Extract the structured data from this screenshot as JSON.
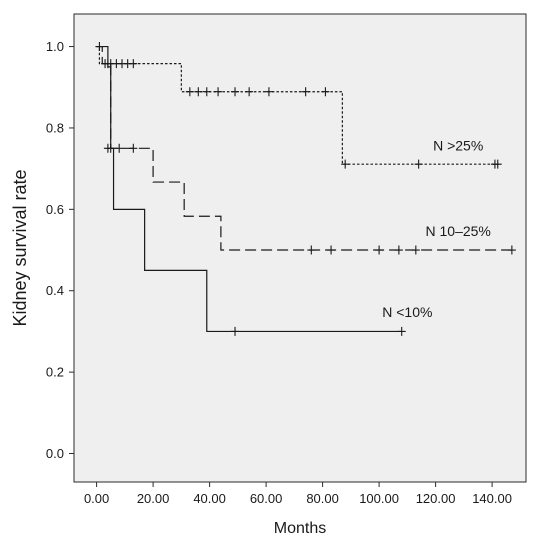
{
  "chart_data": {
    "type": "line",
    "xlabel": "Months",
    "ylabel": "Kidney survival rate",
    "xlim": [
      -8,
      152
    ],
    "ylim": [
      -0.07,
      1.08
    ],
    "x_ticks": [
      0,
      20,
      40,
      60,
      80,
      100,
      120,
      140
    ],
    "x_tick_labels": [
      "0.00",
      "20.00",
      "40.00",
      "60.00",
      "80.00",
      "100.00",
      "120.00",
      "140.00"
    ],
    "y_ticks": [
      0.0,
      0.2,
      0.4,
      0.6,
      0.8,
      1.0
    ],
    "y_tick_labels": [
      "0.0",
      "0.2",
      "0.4",
      "0.6",
      "0.8",
      "1.0"
    ],
    "grid": false,
    "background": "#efefef",
    "series": [
      {
        "name": "N >25%",
        "line_style": "dotted",
        "steps": [
          [
            0,
            1.0
          ],
          [
            1,
            0.958
          ],
          [
            30,
            0.889
          ],
          [
            87,
            0.711
          ],
          [
            143,
            0.711
          ]
        ],
        "censored": [
          [
            4,
            0.958
          ],
          [
            5,
            0.958
          ],
          [
            7,
            0.958
          ],
          [
            9,
            0.958
          ],
          [
            11,
            0.958
          ],
          [
            13,
            0.958
          ],
          [
            33,
            0.889
          ],
          [
            36,
            0.889
          ],
          [
            39,
            0.889
          ],
          [
            43,
            0.889
          ],
          [
            49,
            0.889
          ],
          [
            54,
            0.889
          ],
          [
            61,
            0.889
          ],
          [
            74,
            0.889
          ],
          [
            81,
            0.889
          ],
          [
            88,
            0.711
          ],
          [
            114,
            0.711
          ],
          [
            141,
            0.711
          ],
          [
            142,
            0.711
          ]
        ]
      },
      {
        "name": "N 10–25%",
        "line_style": "dashed",
        "steps": [
          [
            0,
            1.0
          ],
          [
            2,
            0.958
          ],
          [
            5,
            0.75
          ],
          [
            20,
            0.667
          ],
          [
            31,
            0.583
          ],
          [
            44,
            0.5
          ],
          [
            147,
            0.5
          ]
        ],
        "censored": [
          [
            1,
            1.0
          ],
          [
            3,
            0.958
          ],
          [
            4,
            0.75
          ],
          [
            8,
            0.75
          ],
          [
            13,
            0.75
          ],
          [
            76,
            0.5
          ],
          [
            83,
            0.5
          ],
          [
            100,
            0.5
          ],
          [
            107,
            0.5
          ],
          [
            113,
            0.5
          ],
          [
            147,
            0.5
          ]
        ]
      },
      {
        "name": "N <10%",
        "line_style": "solid",
        "steps": [
          [
            0,
            1.0
          ],
          [
            4,
            0.95
          ],
          [
            5,
            0.75
          ],
          [
            6,
            0.6
          ],
          [
            17,
            0.45
          ],
          [
            39,
            0.3
          ],
          [
            108,
            0.3
          ]
        ],
        "censored": [
          [
            5,
            0.75
          ],
          [
            49,
            0.3
          ],
          [
            108,
            0.3
          ]
        ]
      }
    ],
    "series_labels": [
      {
        "text": "N >25%",
        "x": 128,
        "y": 0.745
      },
      {
        "text": "N 10–25%",
        "x": 128,
        "y": 0.535
      },
      {
        "text": "N <10%",
        "x": 110,
        "y": 0.335
      }
    ]
  }
}
